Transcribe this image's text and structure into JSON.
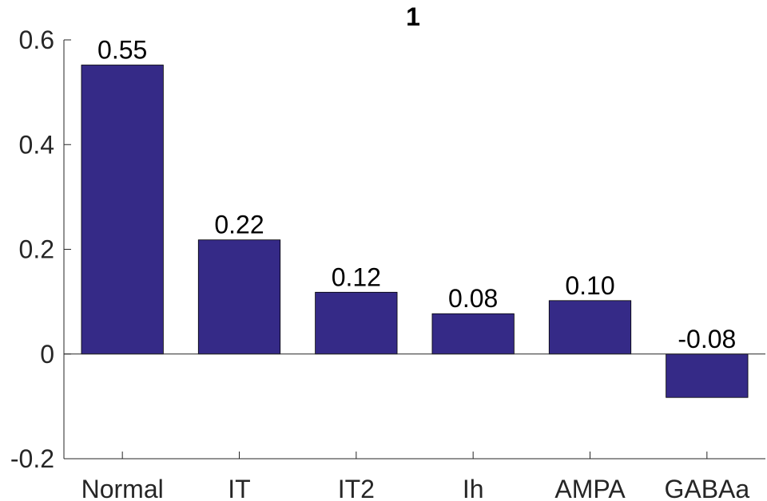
{
  "chart_data": {
    "type": "bar",
    "title": "1",
    "xlabel": "",
    "ylabel": "",
    "categories": [
      "Normal",
      "IT",
      "IT2",
      "Ih",
      "AMPA",
      "GABAa"
    ],
    "values": [
      0.552,
      0.218,
      0.118,
      0.077,
      0.102,
      -0.083
    ],
    "value_labels": [
      "0.55",
      "0.22",
      "0.12",
      "0.08",
      "0.10",
      "-0.08"
    ],
    "ylim": [
      -0.2,
      0.6
    ],
    "yticks": [
      -0.2,
      0,
      0.2,
      0.4,
      0.6
    ],
    "ytick_labels": [
      "-0.2",
      "0",
      "0.2",
      "0.4",
      "0.6"
    ],
    "grid": false,
    "colors": {
      "bar": "#352a87",
      "axis": "#262626",
      "zero_line": "#262626"
    }
  }
}
